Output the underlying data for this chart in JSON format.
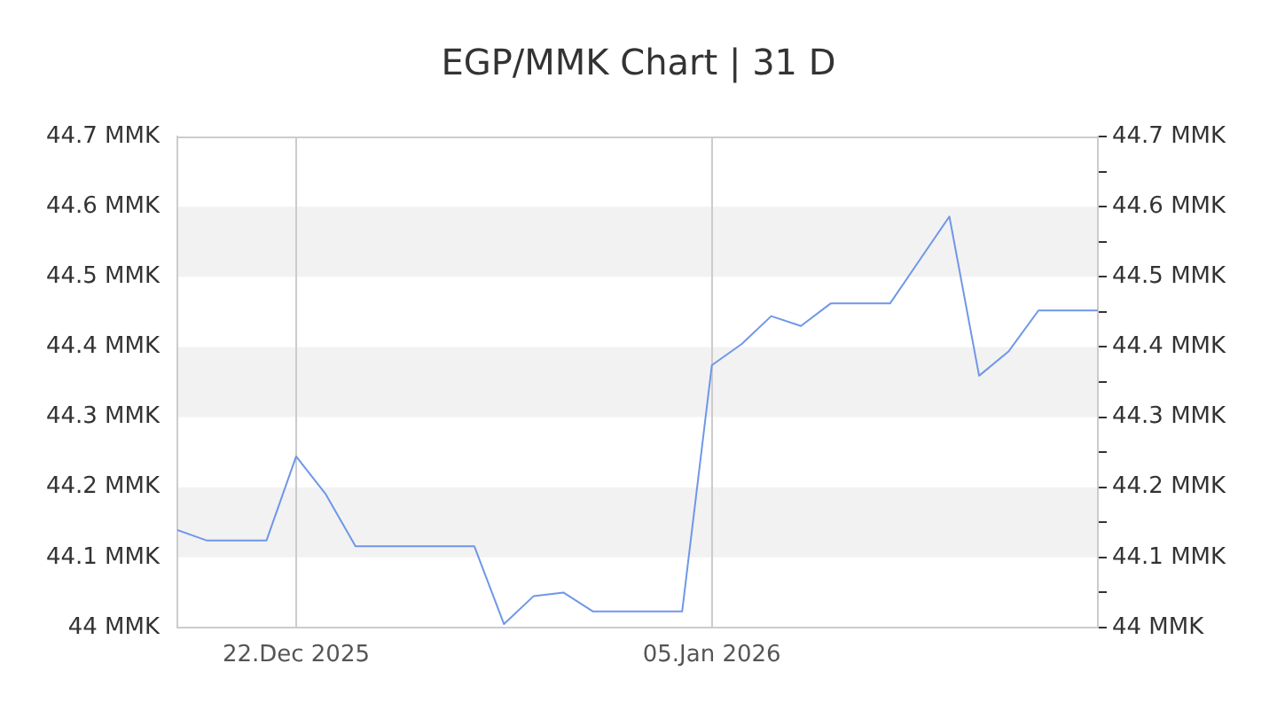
{
  "chart_data": {
    "type": "line",
    "title": "EGP/MMK Chart | 31 D",
    "x": [
      "2025-12-18",
      "2025-12-19",
      "2025-12-20",
      "2025-12-21",
      "2025-12-22",
      "2025-12-23",
      "2025-12-24",
      "2025-12-25",
      "2025-12-26",
      "2025-12-27",
      "2025-12-28",
      "2025-12-29",
      "2025-12-30",
      "2025-12-31",
      "2026-01-01",
      "2026-01-02",
      "2026-01-03",
      "2026-01-04",
      "2026-01-05",
      "2026-01-06",
      "2026-01-07",
      "2026-01-08",
      "2026-01-09",
      "2026-01-10",
      "2026-01-11",
      "2026-01-12",
      "2026-01-13",
      "2026-01-14",
      "2026-01-15",
      "2026-01-16",
      "2026-01-17",
      "2026-01-18"
    ],
    "values": [
      44.139,
      44.124,
      44.124,
      44.124,
      44.244,
      44.19,
      44.116,
      44.116,
      44.116,
      44.116,
      44.116,
      44.005,
      44.045,
      44.05,
      44.023,
      44.023,
      44.023,
      44.023,
      44.374,
      44.404,
      44.444,
      44.43,
      44.462,
      44.462,
      44.462,
      44.524,
      44.586,
      44.359,
      44.394,
      44.452,
      44.452,
      44.452
    ],
    "color": "#6f97e8",
    "xlim": [
      "2025-12-18",
      "2026-01-18"
    ],
    "xticks": [
      {
        "value": "2025-12-22",
        "label": "22.Dec 2025"
      },
      {
        "value": "2026-01-05",
        "label": "05.Jan 2026"
      }
    ],
    "ylim": [
      44,
      44.7
    ],
    "yticks": [
      {
        "value": 44,
        "label": "44 MMK"
      },
      {
        "value": 44.1,
        "label": "44.1 MMK"
      },
      {
        "value": 44.2,
        "label": "44.2 MMK"
      },
      {
        "value": 44.3,
        "label": "44.3 MMK"
      },
      {
        "value": 44.4,
        "label": "44.4 MMK"
      },
      {
        "value": 44.5,
        "label": "44.5 MMK"
      },
      {
        "value": 44.6,
        "label": "44.6 MMK"
      },
      {
        "value": 44.7,
        "label": "44.7 MMK"
      }
    ],
    "y2lim": [
      44,
      44.7
    ],
    "y2ticks": [
      {
        "value": 44,
        "label": "44 MMK"
      },
      {
        "value": 44.05,
        "label": null
      },
      {
        "value": 44.1,
        "label": "44.1 MMK"
      },
      {
        "value": 44.15,
        "label": null
      },
      {
        "value": 44.2,
        "label": "44.2 MMK"
      },
      {
        "value": 44.25,
        "label": null
      },
      {
        "value": 44.3,
        "label": "44.3 MMK"
      },
      {
        "value": 44.35,
        "label": null
      },
      {
        "value": 44.4,
        "label": "44.4 MMK"
      },
      {
        "value": 44.45,
        "label": null
      },
      {
        "value": 44.5,
        "label": "44.5 MMK"
      },
      {
        "value": 44.55,
        "label": null
      },
      {
        "value": 44.6,
        "label": "44.6 MMK"
      },
      {
        "value": 44.65,
        "label": null
      },
      {
        "value": 44.7,
        "label": "44.7 MMK"
      }
    ],
    "bands": [
      {
        "axis": "y",
        "from": 44.1,
        "to": 44.2,
        "color": "#f2f2f2"
      },
      {
        "axis": "y",
        "from": 44.3,
        "to": 44.4,
        "color": "#f2f2f2"
      },
      {
        "axis": "y",
        "from": 44.5,
        "to": 44.6,
        "color": "#f2f2f2"
      }
    ],
    "grid": "x",
    "legend": false,
    "marker": "none",
    "line_style": "solid"
  }
}
